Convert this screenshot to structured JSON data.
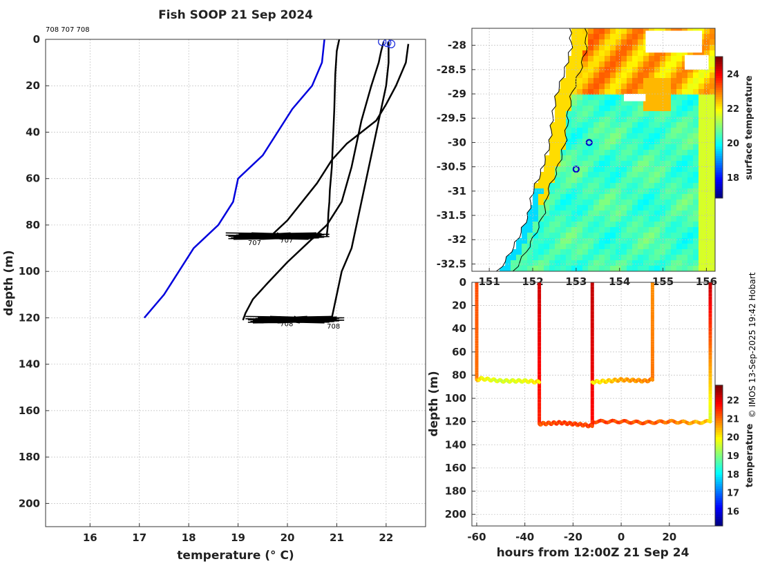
{
  "figure": {
    "title": "Fish SOOP 21 Sep 2024",
    "credit": "© IMOS 13-Sep-2025 19:42 Hobart"
  },
  "chart_data": [
    {
      "type": "line",
      "name": "profile",
      "header_text": "708 707 708",
      "xlabel": "temperature (° C)",
      "ylabel": "depth (m)",
      "xlim": [
        15.1,
        22.8
      ],
      "ylim": [
        210,
        0
      ],
      "xticks": [
        "16",
        "17",
        "18",
        "19",
        "20",
        "21",
        "22"
      ],
      "yticks": [
        "0",
        "20",
        "40",
        "60",
        "80",
        "100",
        "120",
        "140",
        "160",
        "180",
        "200"
      ],
      "grid": true,
      "climatology": {
        "color": "#0000dd",
        "x": [
          20.75,
          20.7,
          20.5,
          20.1,
          19.5,
          19.0,
          18.9,
          18.6,
          18.1,
          17.8,
          17.5,
          17.1
        ],
        "y": [
          0,
          10,
          20,
          30,
          50,
          60,
          70,
          80,
          90,
          100,
          110,
          120
        ]
      },
      "profiles": [
        {
          "label": "707",
          "color": "#000000",
          "x": [
            21.05,
            21.0,
            20.97,
            20.95,
            20.92,
            20.9,
            20.88,
            20.86,
            20.85,
            20.83,
            20.82,
            20.8,
            20.8
          ],
          "y": [
            0,
            5,
            15,
            30,
            45,
            55,
            60,
            65,
            70,
            75,
            80,
            84,
            85
          ]
        },
        {
          "label": "708",
          "color": "#000000",
          "x": [
            21.95,
            21.9,
            21.85,
            21.7,
            21.5,
            21.3,
            21.1,
            20.8,
            20.4,
            20.0,
            19.6,
            19.3,
            19.15,
            19.1
          ],
          "y": [
            1,
            5,
            10,
            20,
            35,
            55,
            70,
            80,
            88,
            96,
            105,
            112,
            118,
            121
          ]
        },
        {
          "label": "708",
          "color": "#000000",
          "x": [
            22.05,
            22.05,
            22.0,
            21.9,
            21.8,
            21.7,
            21.6,
            21.5,
            21.4,
            21.3,
            21.2,
            21.1,
            21.05,
            21.0,
            20.95,
            20.9
          ],
          "y": [
            1,
            10,
            20,
            30,
            40,
            50,
            60,
            70,
            80,
            90,
            95,
            100,
            105,
            110,
            115,
            120
          ]
        },
        {
          "label": "707",
          "color": "#000000",
          "x": [
            22.45,
            22.4,
            22.2,
            22.0,
            21.8,
            21.5,
            21.2,
            20.9,
            20.6,
            20.3,
            20.0,
            19.7
          ],
          "y": [
            2,
            10,
            20,
            28,
            35,
            40,
            45,
            52,
            62,
            70,
            78,
            84
          ]
        }
      ],
      "surface_markers": {
        "x": [
          21.92,
          22.02,
          22.1
        ],
        "y": [
          1,
          1.5,
          2
        ]
      }
    },
    {
      "type": "heatmap",
      "name": "map",
      "colorbar_label": "surface temperature",
      "colorbar_ticks": [
        "18",
        "20",
        "22",
        "24"
      ],
      "clim": [
        16.8,
        25.0
      ],
      "xlim": [
        150.6,
        156.2
      ],
      "ylim": [
        -32.65,
        -27.65
      ],
      "xticks": [
        "151",
        "152",
        "153",
        "154",
        "155",
        "156"
      ],
      "yticks": [
        "-28",
        "-28.5",
        "-29",
        "-29.5",
        "-30",
        "-30.5",
        "-31",
        "-31.5",
        "-32",
        "-32.5"
      ],
      "stations": {
        "lon": [
          153.3,
          153.0
        ],
        "lat": [
          -30.0,
          -30.55
        ]
      }
    },
    {
      "type": "scatter",
      "name": "section",
      "xlabel": "hours from 12:00Z 21 Sep 24",
      "ylabel": "depth (m)",
      "colorbar_label": "temperature",
      "colorbar_ticks": [
        "16",
        "17",
        "18",
        "19",
        "20",
        "21",
        "22"
      ],
      "clim": [
        15.2,
        22.8
      ],
      "xlim": [
        -62,
        39
      ],
      "ylim": [
        210,
        0
      ],
      "xticks": [
        "-60",
        "-40",
        "-20",
        "0",
        "20"
      ],
      "yticks": [
        "0",
        "20",
        "40",
        "60",
        "80",
        "100",
        "120",
        "140",
        "160",
        "180",
        "200"
      ],
      "tows": [
        {
          "x": [
            -60,
            -58,
            -50,
            -40,
            -34
          ],
          "y": [
            84,
            83,
            85,
            85,
            86
          ],
          "t": [
            20.5,
            20.0,
            19.6,
            19.8,
            20.2
          ]
        },
        {
          "x": [
            -34,
            -25,
            -15,
            -12
          ],
          "y": [
            122,
            121,
            123,
            124
          ],
          "t": [
            21.2,
            21.4,
            21.3,
            21.5
          ]
        },
        {
          "x": [
            -12,
            -5,
            0,
            10,
            13
          ],
          "y": [
            86,
            85,
            84,
            85,
            84
          ],
          "t": [
            20.0,
            20.3,
            20.6,
            20.8,
            21.0
          ]
        },
        {
          "x": [
            -12,
            0,
            10,
            20,
            30,
            37
          ],
          "y": [
            120,
            120,
            121,
            120,
            121,
            120
          ],
          "t": [
            21.4,
            21.3,
            21.2,
            21.0,
            20.6,
            20.3
          ]
        }
      ],
      "casts": [
        {
          "x": -60,
          "top_t": 21.3,
          "bottom_t": 21.0,
          "bottom": 84
        },
        {
          "x": -34,
          "top_t": 22.2,
          "bottom_t": 21.6,
          "bottom": 122
        },
        {
          "x": -12,
          "top_t": 22.3,
          "bottom_t": 21.8,
          "bottom": 124
        },
        {
          "x": 13,
          "top_t": 20.8,
          "bottom_t": 21.0,
          "bottom": 85
        },
        {
          "x": 37,
          "top_t": 22.3,
          "bottom_t": 19.5,
          "bottom": 121
        }
      ]
    }
  ]
}
